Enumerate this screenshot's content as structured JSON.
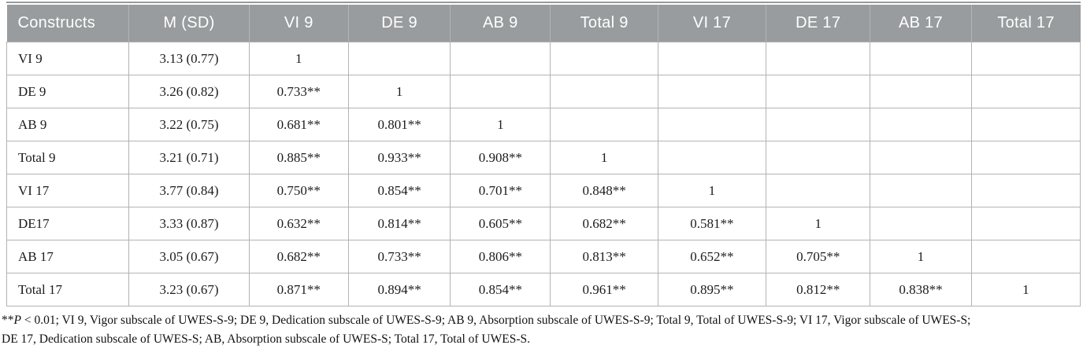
{
  "table": {
    "columns": [
      "Constructs",
      "M (SD)",
      "VI 9",
      "DE 9",
      "AB 9",
      "Total 9",
      "VI 17",
      "DE 17",
      "AB 17",
      "Total 17"
    ],
    "rows": [
      {
        "label": "VI 9",
        "msd": "3.13 (0.77)",
        "values": [
          "1",
          "",
          "",
          "",
          "",
          "",
          "",
          ""
        ]
      },
      {
        "label": "DE 9",
        "msd": "3.26 (0.82)",
        "values": [
          "0.733**",
          "1",
          "",
          "",
          "",
          "",
          "",
          ""
        ]
      },
      {
        "label": "AB 9",
        "msd": "3.22 (0.75)",
        "values": [
          "0.681**",
          "0.801**",
          "1",
          "",
          "",
          "",
          "",
          ""
        ]
      },
      {
        "label": "Total 9",
        "msd": "3.21 (0.71)",
        "values": [
          "0.885**",
          "0.933**",
          "0.908**",
          "1",
          "",
          "",
          "",
          ""
        ]
      },
      {
        "label": "VI 17",
        "msd": "3.77 (0.84)",
        "values": [
          "0.750**",
          "0.854**",
          "0.701**",
          "0.848**",
          "1",
          "",
          "",
          ""
        ]
      },
      {
        "label": "DE17",
        "msd": "3.33 (0.87)",
        "values": [
          "0.632**",
          "0.814**",
          "0.605**",
          "0.682**",
          "0.581**",
          "1",
          "",
          ""
        ]
      },
      {
        "label": "AB 17",
        "msd": "3.05 (0.67)",
        "values": [
          "0.682**",
          "0.733**",
          "0.806**",
          "0.813**",
          "0.652**",
          "0.705**",
          "1",
          ""
        ]
      },
      {
        "label": "Total 17",
        "msd": "3.23 (0.67)",
        "values": [
          "0.871**",
          "0.894**",
          "0.854**",
          "0.961**",
          "0.895**",
          "0.812**",
          "0.838**",
          "1"
        ]
      }
    ]
  },
  "footnote": {
    "asterisks": "**",
    "p_italic": "P",
    "rest_line1": " < 0.01; VI 9, Vigor subscale of UWES-S-9; DE 9, Dedication subscale of UWES-S-9; AB 9, Absorption subscale of UWES-S-9; Total 9, Total of UWES-S-9; VI 17, Vigor subscale of UWES-S;",
    "line2": "DE 17, Dedication subscale of UWES-S; AB, Absorption subscale of UWES-S; Total 17, Total of UWES-S."
  },
  "colors": {
    "header_background": "#999c9e",
    "header_text": "#ffffff",
    "grid_border": "#b1b3b5",
    "top_rule": "#97999b",
    "body_text": "#1c1c1c"
  }
}
